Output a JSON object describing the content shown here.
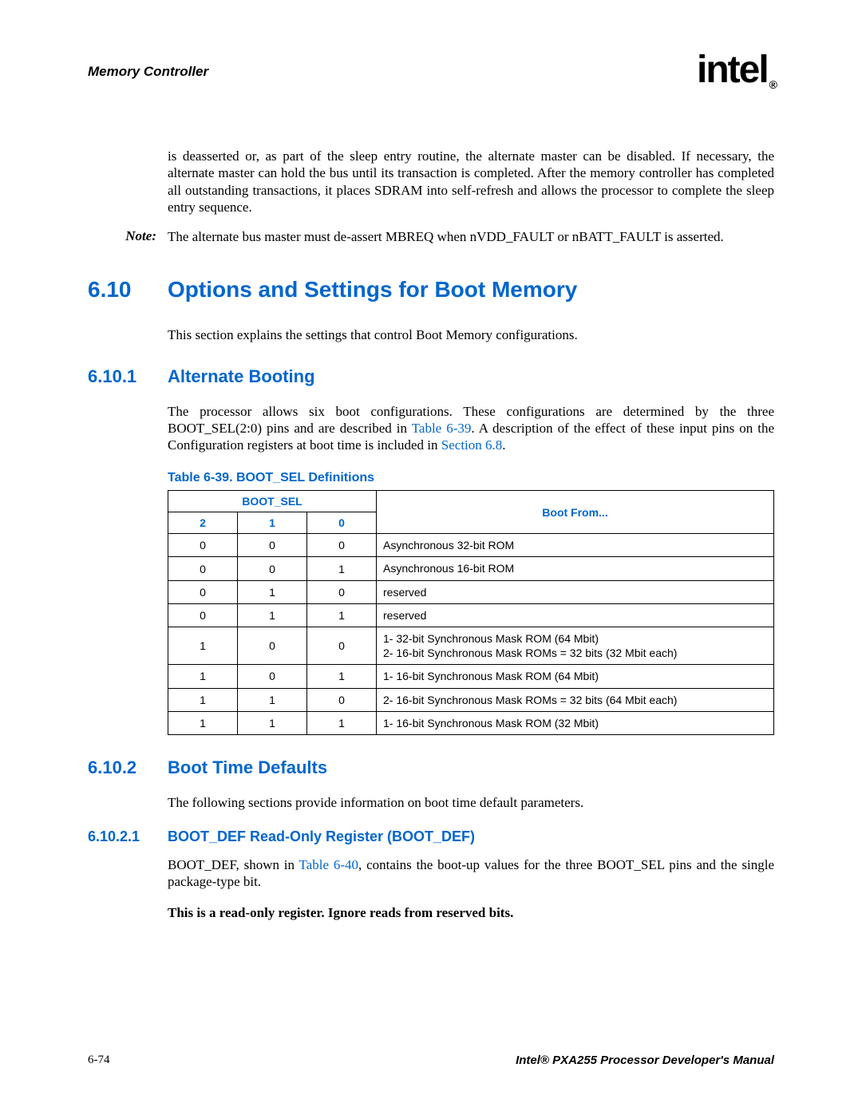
{
  "header": {
    "chapter": "Memory Controller",
    "logo_text": "intel",
    "logo_reg": "®"
  },
  "intro_para": "is deasserted or, as part of the sleep entry routine, the alternate master can be disabled. If necessary, the alternate master can hold the bus until its transaction is completed. After the memory controller has completed all outstanding transactions, it places SDRAM into self-refresh and allows the processor to complete the sleep entry sequence.",
  "note": {
    "label": "Note:",
    "text": "The alternate bus master must de-assert MBREQ when nVDD_FAULT or nBATT_FAULT is asserted."
  },
  "s610": {
    "num": "6.10",
    "title": "Options and Settings for Boot Memory",
    "para": "This section explains the settings that control Boot Memory configurations."
  },
  "s6101": {
    "num": "6.10.1",
    "title": "Alternate Booting",
    "para_pre": "The processor allows six boot configurations. These configurations are determined by the three BOOT_SEL(2:0) pins and are described in ",
    "link1": "Table 6-39",
    "para_mid": ". A description of the effect of these input pins on the Configuration registers at boot time is included in ",
    "link2": "Section 6.8",
    "para_post": "."
  },
  "table": {
    "caption": "Table 6-39. BOOT_SEL Definitions",
    "header_group": "BOOT_SEL",
    "header_bootfrom": "Boot From...",
    "sub_headers": [
      "2",
      "1",
      "0"
    ],
    "rows": [
      {
        "b2": "0",
        "b1": "0",
        "b0": "0",
        "desc": [
          "Asynchronous 32-bit ROM"
        ]
      },
      {
        "b2": "0",
        "b1": "0",
        "b0": "1",
        "desc": [
          "Asynchronous 16-bit ROM"
        ]
      },
      {
        "b2": "0",
        "b1": "1",
        "b0": "0",
        "desc": [
          "reserved"
        ]
      },
      {
        "b2": "0",
        "b1": "1",
        "b0": "1",
        "desc": [
          "reserved"
        ]
      },
      {
        "b2": "1",
        "b1": "0",
        "b0": "0",
        "desc": [
          "1- 32-bit Synchronous Mask ROM (64 Mbit)",
          "2- 16-bit Synchronous Mask ROMs = 32 bits (32 Mbit each)"
        ]
      },
      {
        "b2": "1",
        "b1": "0",
        "b0": "1",
        "desc": [
          "1- 16-bit Synchronous Mask ROM (64 Mbit)"
        ]
      },
      {
        "b2": "1",
        "b1": "1",
        "b0": "0",
        "desc": [
          "2- 16-bit Synchronous Mask ROMs = 32 bits (64 Mbit each)"
        ]
      },
      {
        "b2": "1",
        "b1": "1",
        "b0": "1",
        "desc": [
          "1- 16-bit Synchronous Mask ROM (32 Mbit)"
        ]
      }
    ],
    "col_widths": [
      "70px",
      "70px",
      "70px",
      "auto"
    ],
    "border_color": "#000000",
    "header_color": "#0066cc"
  },
  "s6102": {
    "num": "6.10.2",
    "title": "Boot Time Defaults",
    "para": "The following sections provide information on boot time default parameters."
  },
  "s61021": {
    "num": "6.10.2.1",
    "title": "BOOT_DEF Read-Only Register (BOOT_DEF)",
    "para_pre": "BOOT_DEF, shown in ",
    "link": "Table 6-40",
    "para_post": ", contains the boot-up values for the three BOOT_SEL pins and the single package-type bit.",
    "bold": "This is a read-only register. Ignore reads from reserved bits."
  },
  "footer": {
    "left": "6-74",
    "right": "Intel® PXA255 Processor Developer's Manual"
  }
}
